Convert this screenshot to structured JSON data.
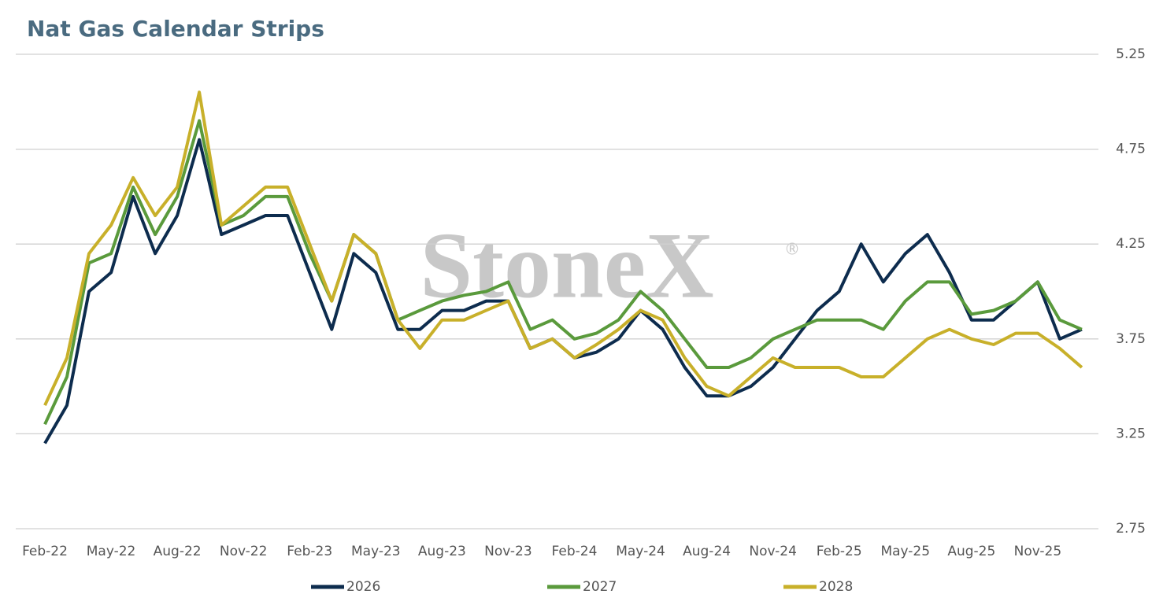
{
  "chart_data": {
    "type": "line",
    "title": "Nat Gas Calendar Strips",
    "watermark": "StoneX",
    "watermark_mark": "®",
    "categories": [
      "Feb-22",
      null,
      null,
      "May-22",
      null,
      null,
      "Aug-22",
      null,
      null,
      "Nov-22",
      null,
      null,
      "Feb-23",
      null,
      null,
      "May-23",
      null,
      null,
      "Aug-23",
      null,
      null,
      "Nov-23",
      null,
      null,
      "Feb-24",
      null,
      null,
      "May-24",
      null,
      null,
      "Aug-24",
      null,
      null,
      "Nov-24",
      null,
      null,
      "Feb-25",
      null,
      null,
      "May-25",
      null,
      null,
      "Aug-25",
      null,
      null,
      "Nov-25",
      null,
      null
    ],
    "series": [
      {
        "name": "2026",
        "color": "#0d2c4e",
        "values": [
          3.2,
          3.4,
          4.0,
          4.1,
          4.5,
          4.2,
          4.4,
          4.8,
          4.3,
          4.35,
          4.4,
          4.4,
          4.1,
          3.8,
          4.2,
          4.1,
          3.8,
          3.8,
          3.9,
          3.9,
          3.95,
          3.95,
          3.7,
          3.75,
          3.65,
          3.68,
          3.75,
          3.9,
          3.8,
          3.6,
          3.45,
          3.45,
          3.5,
          3.6,
          3.75,
          3.9,
          4.0,
          4.25,
          4.05,
          4.2,
          4.3,
          4.1,
          3.85,
          3.85,
          3.95,
          4.05,
          3.75,
          3.8
        ]
      },
      {
        "name": "2027",
        "color": "#5a9a3c",
        "values": [
          3.3,
          3.55,
          4.15,
          4.2,
          4.55,
          4.3,
          4.5,
          4.9,
          4.35,
          4.4,
          4.5,
          4.5,
          4.2,
          3.95,
          4.3,
          4.2,
          3.85,
          3.9,
          3.95,
          3.98,
          4.0,
          4.05,
          3.8,
          3.85,
          3.75,
          3.78,
          3.85,
          4.0,
          3.9,
          3.75,
          3.6,
          3.6,
          3.65,
          3.75,
          3.8,
          3.85,
          3.85,
          3.85,
          3.8,
          3.95,
          4.05,
          4.05,
          3.88,
          3.9,
          3.95,
          4.05,
          3.85,
          3.8
        ]
      },
      {
        "name": "2028",
        "color": "#c8b02a",
        "values": [
          3.4,
          3.65,
          4.2,
          4.35,
          4.6,
          4.4,
          4.55,
          5.05,
          4.35,
          4.45,
          4.55,
          4.55,
          4.25,
          3.95,
          4.3,
          4.2,
          3.85,
          3.7,
          3.85,
          3.85,
          3.9,
          3.95,
          3.7,
          3.75,
          3.65,
          3.72,
          3.8,
          3.9,
          3.85,
          3.65,
          3.5,
          3.45,
          3.55,
          3.65,
          3.6,
          3.6,
          3.6,
          3.55,
          3.55,
          3.65,
          3.75,
          3.8,
          3.75,
          3.72,
          3.78,
          3.78,
          3.7,
          3.6
        ]
      }
    ],
    "ylim": [
      2.75,
      5.25
    ],
    "yticks": [
      2.75,
      3.25,
      3.75,
      4.25,
      4.75,
      5.25
    ],
    "grid": true,
    "legend": "bottom"
  }
}
